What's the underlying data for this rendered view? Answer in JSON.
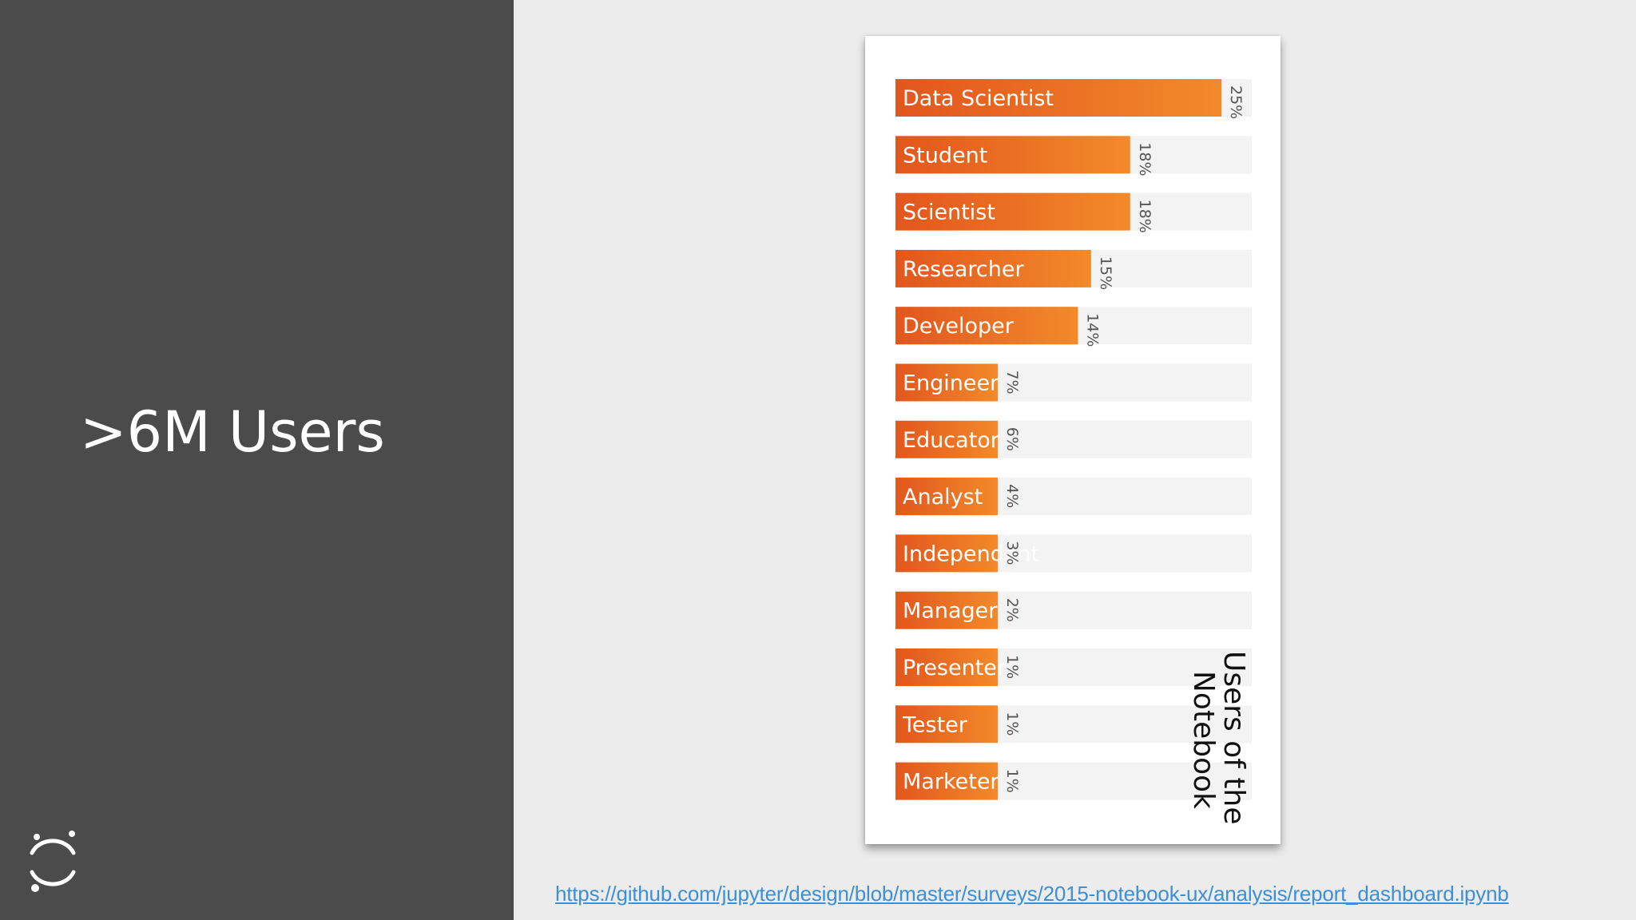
{
  "slide": {
    "title": ">6M Users",
    "link": "https://github.com/jupyter/design/blob/master/surveys/2015-notebook-ux/analysis/report_dashboard.ipynb"
  },
  "colors": {
    "panel": "#4b4b4b",
    "bar_start": "#e2561d",
    "bar_end": "#f28a2a",
    "track": "#f3f3f3",
    "link": "#3d8fd6"
  },
  "chart_data": {
    "type": "bar",
    "orientation": "horizontal",
    "title_lines": [
      "Users of the",
      "Notebook"
    ],
    "categories": [
      "Data Scientist",
      "Student",
      "Scientist",
      "Researcher",
      "Developer",
      "Engineer",
      "Educator",
      "Analyst",
      "Independant",
      "Manager",
      "Presenter",
      "Tester",
      "Marketer"
    ],
    "values": [
      25,
      18,
      18,
      15,
      14,
      7,
      6,
      4,
      3,
      2,
      1,
      1,
      1
    ],
    "value_labels": [
      "25%",
      "18%",
      "18%",
      "15%",
      "14%",
      "7%",
      "6%",
      "4%",
      "3%",
      "2%",
      "1%",
      "1%",
      "1%"
    ],
    "xlim": [
      0,
      100
    ],
    "unit": "%"
  }
}
